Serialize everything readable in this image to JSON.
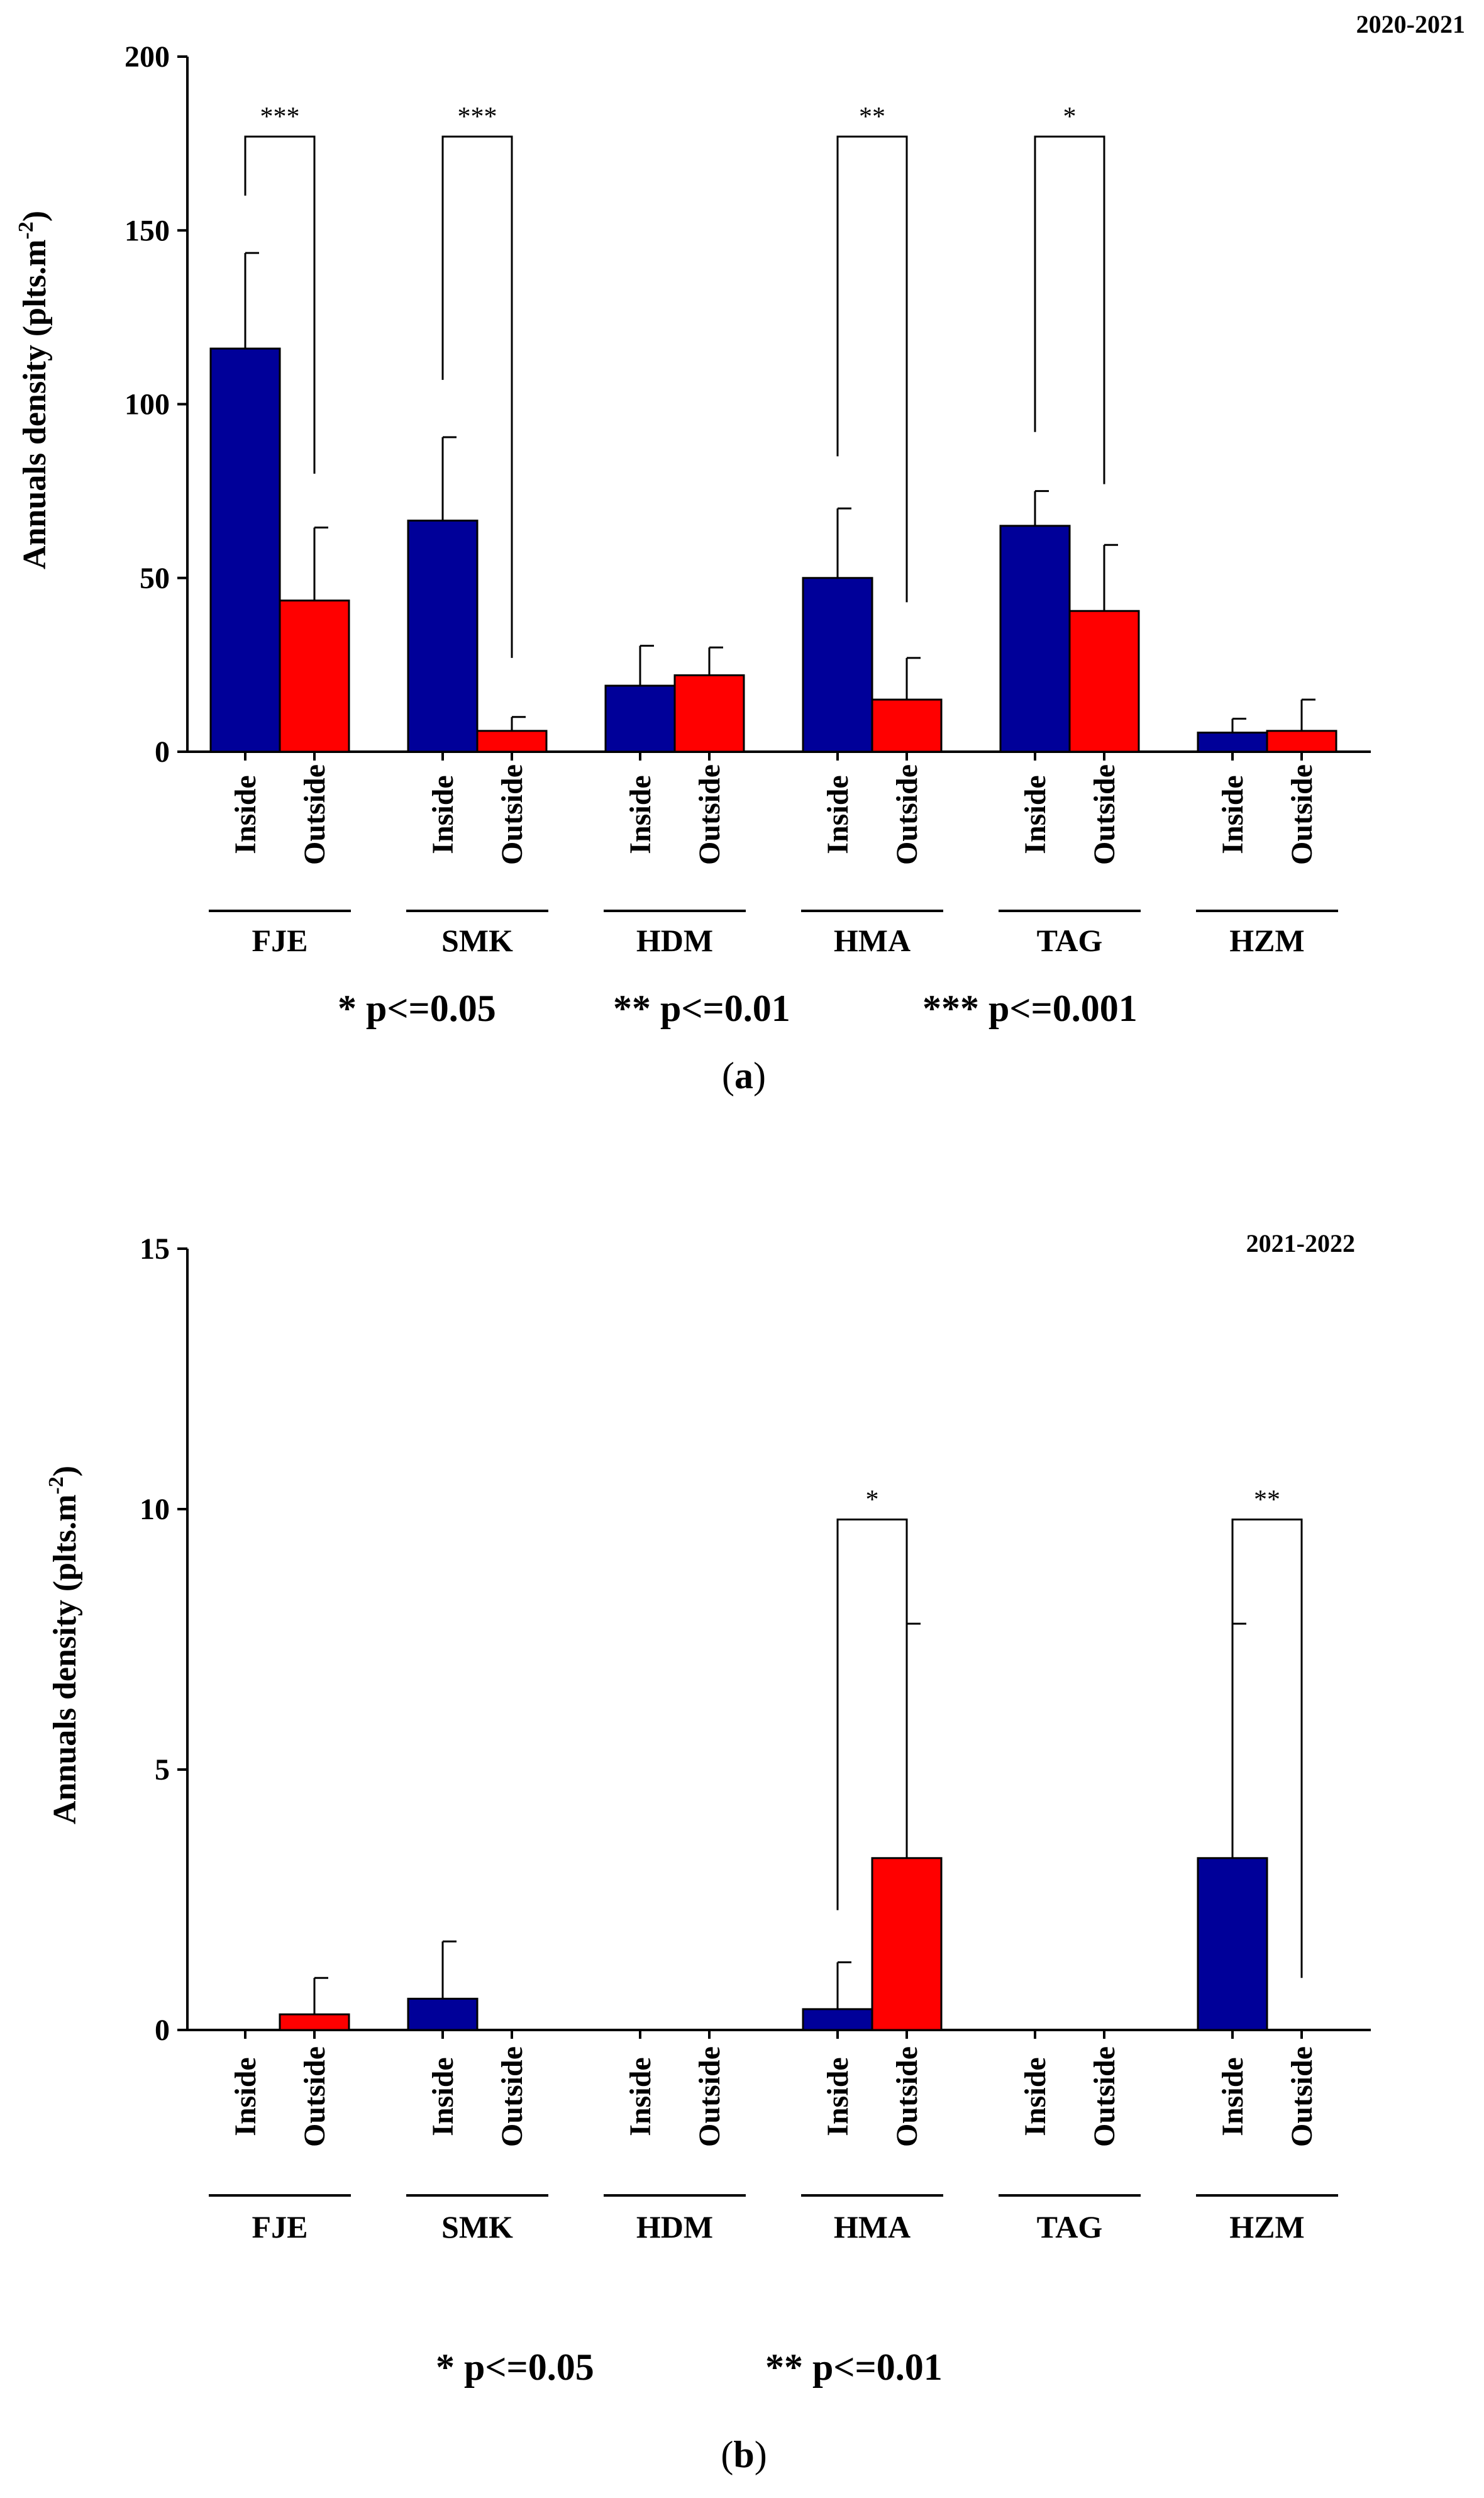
{
  "colors": {
    "inside": "#000099",
    "outside": "#ff0000",
    "axis": "#000000"
  },
  "chart_data": [
    {
      "type": "bar",
      "panel_label": "a",
      "year_label": "2020-2021",
      "ylabel_main": "Annuals density (plts.m",
      "ylabel_sup": "-2",
      "ylabel_close": ")",
      "ylim": [
        0,
        200
      ],
      "yticks": [
        0,
        50,
        100,
        150,
        200
      ],
      "categories": [
        "FJE",
        "SMK",
        "HDM",
        "HMA",
        "TAG",
        "HZM"
      ],
      "condition_labels": [
        "Inside",
        "Outside"
      ],
      "series": [
        {
          "name": "Inside",
          "values": [
            116,
            66.5,
            19,
            50,
            65,
            5.5
          ],
          "errors": [
            27.5,
            24,
            11.5,
            20,
            10,
            4
          ]
        },
        {
          "name": "Outside",
          "values": [
            43.5,
            6,
            22,
            15,
            40.5,
            6
          ],
          "errors": [
            21,
            4,
            8,
            12,
            19,
            9
          ]
        }
      ],
      "significance": [
        {
          "category": "FJE",
          "stars": "***",
          "bracket_y": 177,
          "left_y": 160,
          "right_y": 80
        },
        {
          "category": "SMK",
          "stars": "***",
          "bracket_y": 177,
          "left_y": 107,
          "right_y": 27
        },
        {
          "category": "HMA",
          "stars": "**",
          "bracket_y": 177,
          "left_y": 85,
          "right_y": 43
        },
        {
          "category": "TAG",
          "stars": "*",
          "bracket_y": 177,
          "left_y": 92,
          "right_y": 77
        }
      ],
      "legend_items": [
        "* p<=0.05",
        "** p<=0.01",
        "*** p<=0.001"
      ]
    },
    {
      "type": "bar",
      "panel_label": "b",
      "year_label": "2021-2022",
      "ylabel_main": "Annuals density (plts.m",
      "ylabel_sup": "-2",
      "ylabel_close": ")",
      "ylim": [
        0,
        15
      ],
      "yticks": [
        0,
        5,
        10,
        15
      ],
      "categories": [
        "FJE",
        "SMK",
        "HDM",
        "HMA",
        "TAG",
        "HZM"
      ],
      "condition_labels": [
        "Inside",
        "Outside"
      ],
      "series": [
        {
          "name": "Inside",
          "values": [
            0,
            0.6,
            0,
            0.4,
            0,
            3.3
          ],
          "errors": [
            0,
            1.1,
            0,
            0.9,
            0,
            4.5
          ]
        },
        {
          "name": "Outside",
          "values": [
            0.3,
            0,
            0,
            3.3,
            0,
            0
          ],
          "errors": [
            0.7,
            0,
            0,
            4.5,
            0,
            0
          ]
        }
      ],
      "significance": [
        {
          "category": "HMA",
          "stars": "*",
          "bracket_y": 9.8,
          "left_y": 2.3,
          "right_y": 7.6
        },
        {
          "category": "HZM",
          "stars": "**",
          "bracket_y": 9.8,
          "left_y": 7.6,
          "right_y": 1.0
        }
      ],
      "legend_items": [
        "* p<=0.05",
        "** p<=0.01"
      ]
    }
  ]
}
